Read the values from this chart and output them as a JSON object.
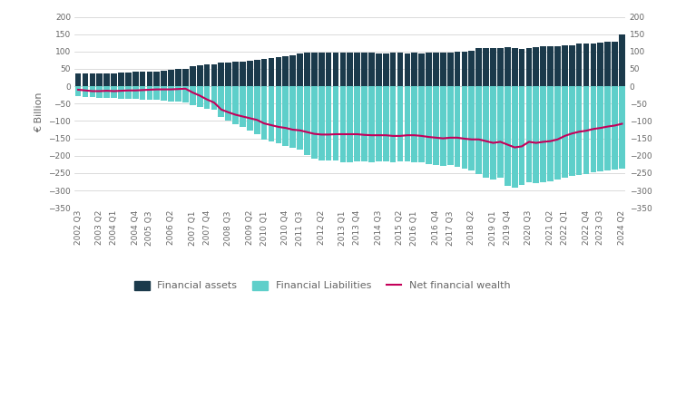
{
  "financial_assets": [
    38,
    37,
    37,
    36,
    38,
    38,
    39,
    39,
    41,
    41,
    42,
    43,
    46,
    47,
    49,
    51,
    57,
    60,
    62,
    63,
    67,
    68,
    70,
    72,
    74,
    76,
    78,
    81,
    84,
    87,
    90,
    93,
    97,
    98,
    97,
    96,
    97,
    97,
    96,
    97,
    96,
    96,
    95,
    94,
    96,
    96,
    95,
    96,
    95,
    96,
    97,
    97,
    97,
    99,
    100,
    101,
    109,
    110,
    111,
    111,
    113,
    111,
    107,
    110,
    113,
    115,
    114,
    116,
    118,
    119,
    122,
    123,
    123,
    126,
    127,
    128,
    148
  ],
  "financial_liabilities": [
    -28,
    -30,
    -32,
    -33,
    -33,
    -34,
    -35,
    -36,
    -37,
    -38,
    -39,
    -40,
    -42,
    -43,
    -44,
    -47,
    -55,
    -60,
    -66,
    -68,
    -88,
    -98,
    -108,
    -118,
    -128,
    -138,
    -153,
    -158,
    -163,
    -173,
    -178,
    -183,
    -198,
    -208,
    -213,
    -213,
    -213,
    -218,
    -218,
    -216,
    -216,
    -218,
    -216,
    -216,
    -218,
    -216,
    -216,
    -218,
    -220,
    -223,
    -228,
    -230,
    -228,
    -233,
    -238,
    -243,
    -253,
    -263,
    -268,
    -263,
    -288,
    -293,
    -283,
    -276,
    -278,
    -276,
    -273,
    -268,
    -263,
    -258,
    -256,
    -253,
    -248,
    -246,
    -243,
    -240,
    -238
  ],
  "net_financial_wealth": [
    -10,
    -12,
    -14,
    -14,
    -13,
    -14,
    -13,
    -12,
    -12,
    -11,
    -10,
    -9,
    -9,
    -9,
    -8,
    -7,
    -18,
    -27,
    -38,
    -47,
    -67,
    -75,
    -82,
    -87,
    -92,
    -97,
    -107,
    -112,
    -117,
    -120,
    -125,
    -127,
    -132,
    -137,
    -139,
    -139,
    -138,
    -138,
    -138,
    -138,
    -140,
    -141,
    -141,
    -141,
    -143,
    -143,
    -141,
    -141,
    -143,
    -146,
    -148,
    -150,
    -148,
    -148,
    -151,
    -153,
    -153,
    -158,
    -163,
    -160,
    -168,
    -176,
    -173,
    -160,
    -163,
    -160,
    -158,
    -153,
    -143,
    -136,
    -131,
    -128,
    -123,
    -120,
    -116,
    -113,
    -108
  ],
  "assets_color": "#1b3a4b",
  "liabilities_color": "#5ecfca",
  "net_wealth_color": "#c4005a",
  "background_color": "#ffffff",
  "grid_color": "#cccccc",
  "ylabel": "€ Billion",
  "ylim": [
    -350,
    200
  ],
  "yticks": [
    -350,
    -300,
    -250,
    -200,
    -150,
    -100,
    -50,
    0,
    50,
    100,
    150,
    200
  ],
  "legend_labels": [
    "Financial assets",
    "Financial Liabilities",
    "Net financial wealth"
  ],
  "text_color": "#666666",
  "tick_fontsize": 6.5,
  "ylabel_fontsize": 8
}
